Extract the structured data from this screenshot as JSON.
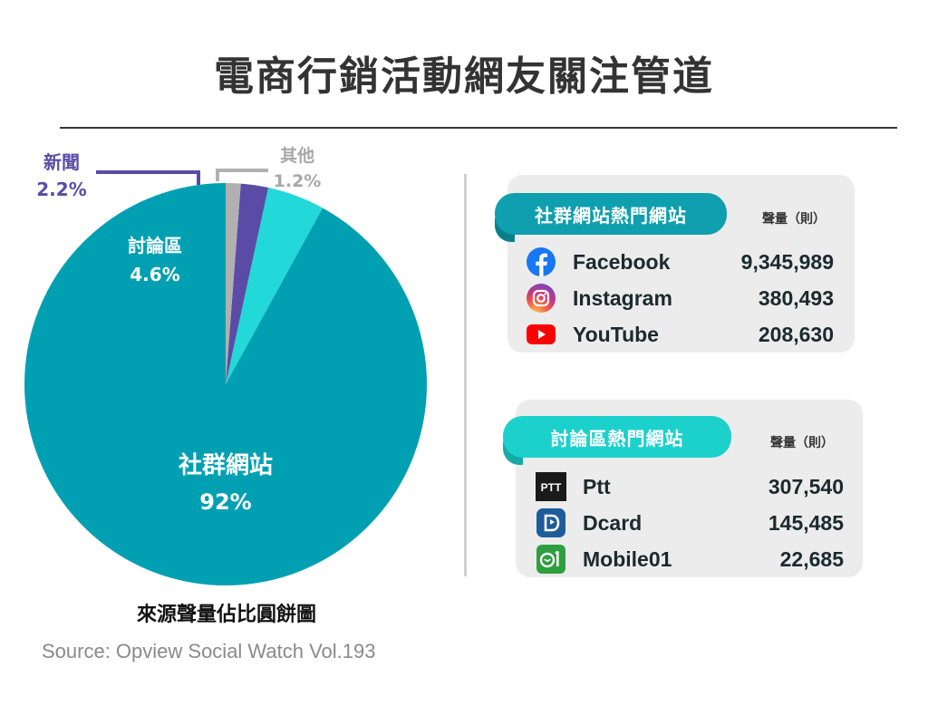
{
  "title": "電商行銷活動網友關注管道",
  "chart_data": {
    "type": "pie",
    "categories": [
      "社群網站",
      "討論區",
      "新聞",
      "其他"
    ],
    "values": [
      92,
      4.6,
      2.2,
      1.2
    ],
    "value_labels": [
      "92%",
      "4.6%",
      "2.2%",
      "1.2%"
    ],
    "colors": [
      "#00a0b2",
      "#23d8d8",
      "#5a4ca6",
      "#b0b0b0"
    ],
    "label_colors": [
      "#ffffff",
      "#ffffff",
      "#5a4ca6",
      "#a8a8a8"
    ],
    "start_angle_deg": 0,
    "direction": "counterclockwise"
  },
  "caption": "來源聲量佔比圓餅圖",
  "source": "Source: Opview Social Watch Vol.193",
  "social": {
    "banner": "社群網站熱門網站",
    "volume_label": "聲量（則）",
    "rows": [
      {
        "name": "Facebook",
        "value": "9,345,989",
        "icon": "facebook-icon"
      },
      {
        "name": "Instagram",
        "value": "380,493",
        "icon": "instagram-icon"
      },
      {
        "name": "YouTube",
        "value": "208,630",
        "icon": "youtube-icon"
      }
    ]
  },
  "forum": {
    "banner": "討論區熱門網站",
    "volume_label": "聲量（則）",
    "rows": [
      {
        "name": "Ptt",
        "value": "307,540",
        "icon": "ptt-icon",
        "icon_text": "PTT"
      },
      {
        "name": "Dcard",
        "value": "145,485",
        "icon": "dcard-icon"
      },
      {
        "name": "Mobile01",
        "value": "22,685",
        "icon": "mobile01-icon"
      }
    ]
  }
}
